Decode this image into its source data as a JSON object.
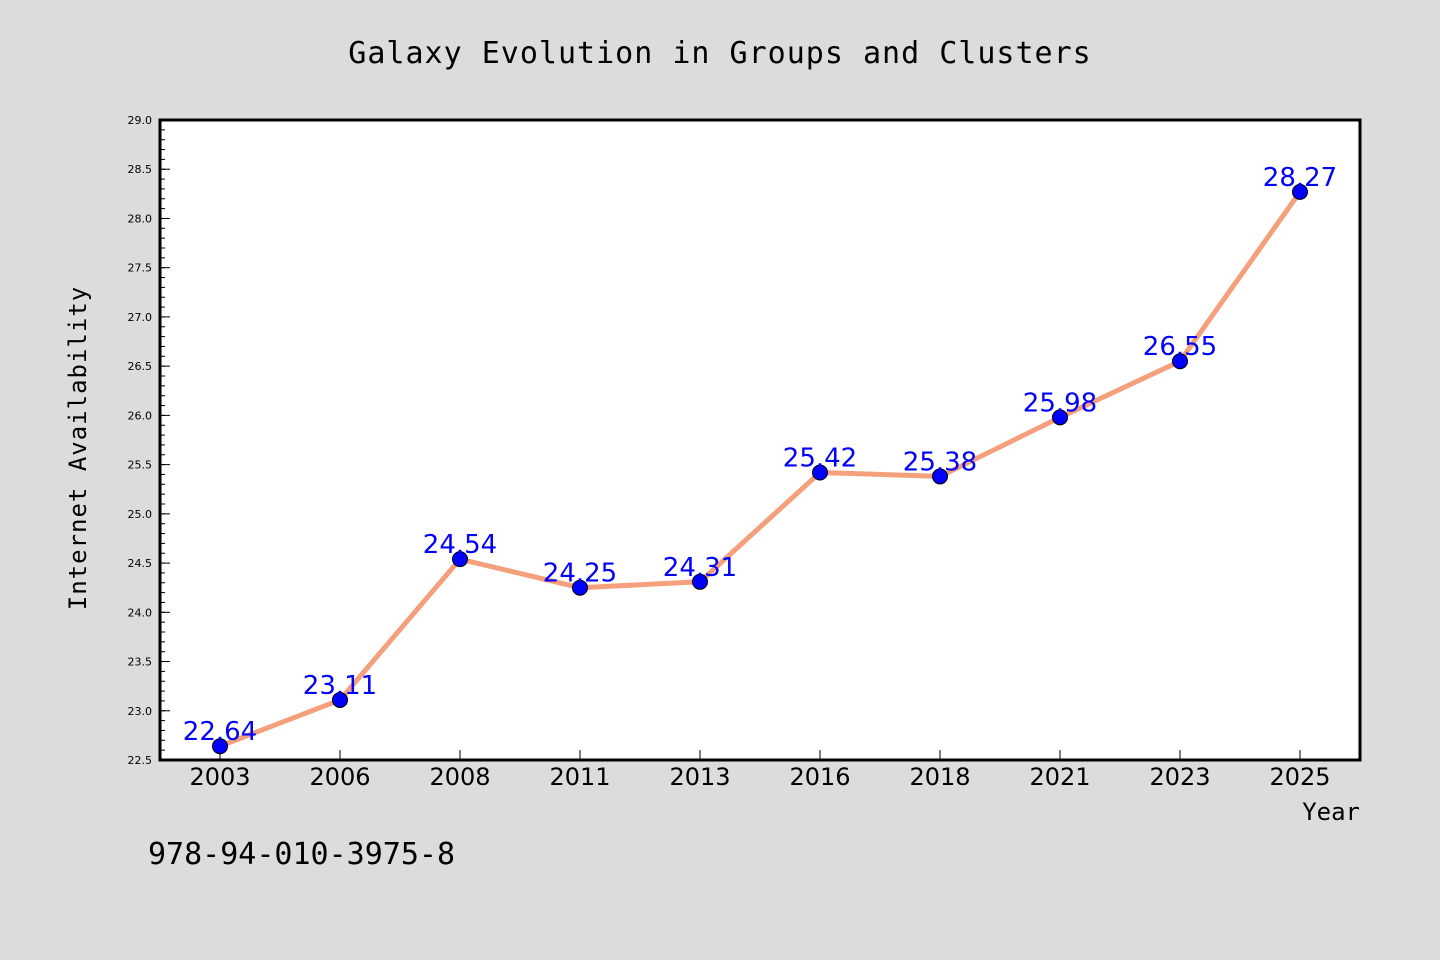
{
  "colors": {
    "background": "#dcdcdc",
    "plot_background": "#ffffff",
    "line": "#f4a07c",
    "marker": "#0000ff",
    "data_label": "#0000ff"
  },
  "footer_text": "978-94-010-3975-8",
  "chart_data": {
    "type": "line",
    "title": "Galaxy Evolution in Groups and Clusters",
    "xlabel": "Year",
    "ylabel": "Internet Availability",
    "categories": [
      "2003",
      "2006",
      "2008",
      "2011",
      "2013",
      "2016",
      "2018",
      "2021",
      "2023",
      "2025"
    ],
    "series": [
      {
        "values": [
          22.64,
          23.11,
          24.54,
          24.25,
          24.31,
          25.42,
          25.38,
          25.98,
          26.55,
          28.27
        ],
        "data_labels": [
          "22.64",
          "23.11",
          "24.54",
          "24.25",
          "24.31",
          "25.42",
          "25.38",
          "25.98",
          "26.55",
          "28.27"
        ]
      }
    ],
    "ylim": [
      22.5,
      29.0
    ],
    "yticks": [
      "22.5",
      "23.0",
      "23.5",
      "24.0",
      "24.5",
      "25.0",
      "25.5",
      "26.0",
      "26.5",
      "27.0",
      "27.5",
      "28.0",
      "28.5",
      "29.0"
    ],
    "y_minor_step": 0.1,
    "grid": false,
    "legend": "none",
    "marker": "circle"
  }
}
